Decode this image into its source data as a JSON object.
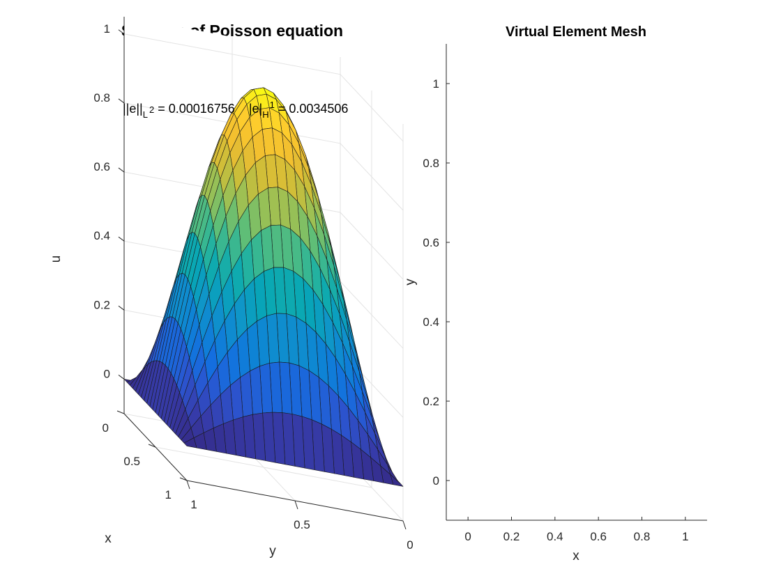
{
  "chart_data": [
    {
      "type": "surface",
      "title": "Solution of Poisson equation",
      "xlabel": "x",
      "ylabel": "y",
      "zlabel": "u",
      "x_ticks": [
        "0",
        "0.5",
        "1"
      ],
      "y_ticks": [
        "1",
        "0.5",
        "0"
      ],
      "z_ticks": [
        "0",
        "0.2",
        "0.4",
        "0.6",
        "0.8",
        "1"
      ],
      "zlim": [
        -0.1,
        1.05
      ],
      "grid": true,
      "colormap": "parula",
      "function": "u(x,y) = sin(pi x) * sin(pi y)",
      "peak_value": 1.0,
      "annotation": {
        "l2_lhs": "||e||",
        "l2_sub": "L",
        "l2_sup": "2",
        "l2_rhs": " = 0.00016756",
        "h1_lhs": "|e|",
        "h1_sub": "H",
        "h1_sup": "1",
        "h1_rhs": " = 0.0034506"
      }
    },
    {
      "type": "mesh",
      "title": "Virtual Element Mesh",
      "xlabel": "x",
      "ylabel": "y",
      "x_ticks": [
        "0",
        "0.2",
        "0.4",
        "0.6",
        "0.8",
        "1"
      ],
      "y_ticks": [
        "0",
        "0.2",
        "0.4",
        "0.6",
        "0.8",
        "1"
      ],
      "xlim": [
        -0.1,
        1.1
      ],
      "ylim": [
        -0.1,
        1.1
      ],
      "domain": [
        [
          0,
          1
        ],
        [
          0,
          1
        ]
      ],
      "vertex_color": "#ff0000",
      "edge_color": "#000000",
      "centroid_color": "#0000ff",
      "centroid_marker": "+",
      "vertex_marker": "o"
    }
  ]
}
